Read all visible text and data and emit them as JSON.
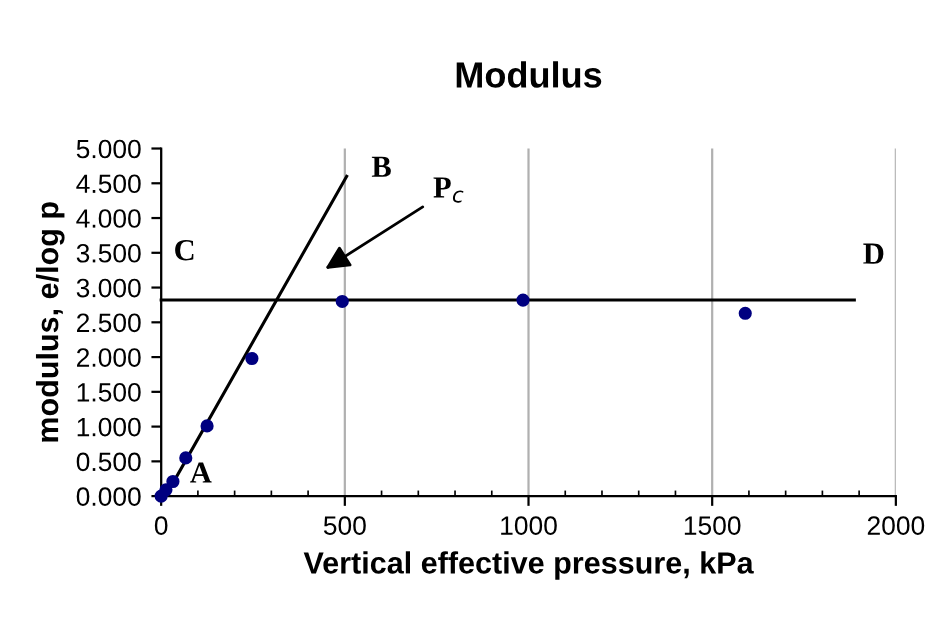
{
  "chart_data": {
    "type": "scatter",
    "title": "Modulus",
    "xlabel": "Vertical effective pressure, kPa",
    "ylabel": "modulus, e/log p",
    "series": [
      {
        "color": "#000080",
        "marker": "circle",
        "x": [
          0,
          13,
          32,
          67,
          125,
          247,
          493,
          985,
          1590
        ],
        "values": [
          0,
          0.09,
          0.21,
          0.55,
          1.01,
          1.98,
          2.8,
          2.82,
          2.63
        ]
      },
      {
        "type": "line",
        "color": "#000000",
        "marker": "none",
        "x": [
          12,
          505
        ],
        "values": [
          0,
          4.6
        ]
      },
      {
        "type": "line",
        "color": "#000000",
        "marker": "none",
        "x": [
          0,
          1887
        ],
        "values": [
          2.82,
          2.82
        ]
      }
    ],
    "annotations": [
      "A",
      "B",
      "C",
      "D",
      "P$_{c}$"
    ],
    "xlim": [
      0,
      2000
    ],
    "xticks": [
      0,
      500,
      1000,
      1500,
      2000
    ],
    "ylim": [
      0,
      5
    ],
    "yticks": [
      {
        "value": 0,
        "label": "0.000"
      },
      {
        "value": 0.5,
        "label": "0.500"
      },
      {
        "value": 1,
        "label": "1.000"
      },
      {
        "value": 1.5,
        "label": "1.500"
      },
      {
        "value": 2,
        "label": "2.000"
      },
      {
        "value": 2.5,
        "label": "2.500"
      },
      {
        "value": 3,
        "label": "3.000"
      },
      {
        "value": 3.5,
        "label": "3.500"
      },
      {
        "value": 4,
        "label": "4.000"
      },
      {
        "value": 4.5,
        "label": "4.500"
      },
      {
        "value": 5,
        "label": "5.000"
      }
    ],
    "grid": "x"
  }
}
